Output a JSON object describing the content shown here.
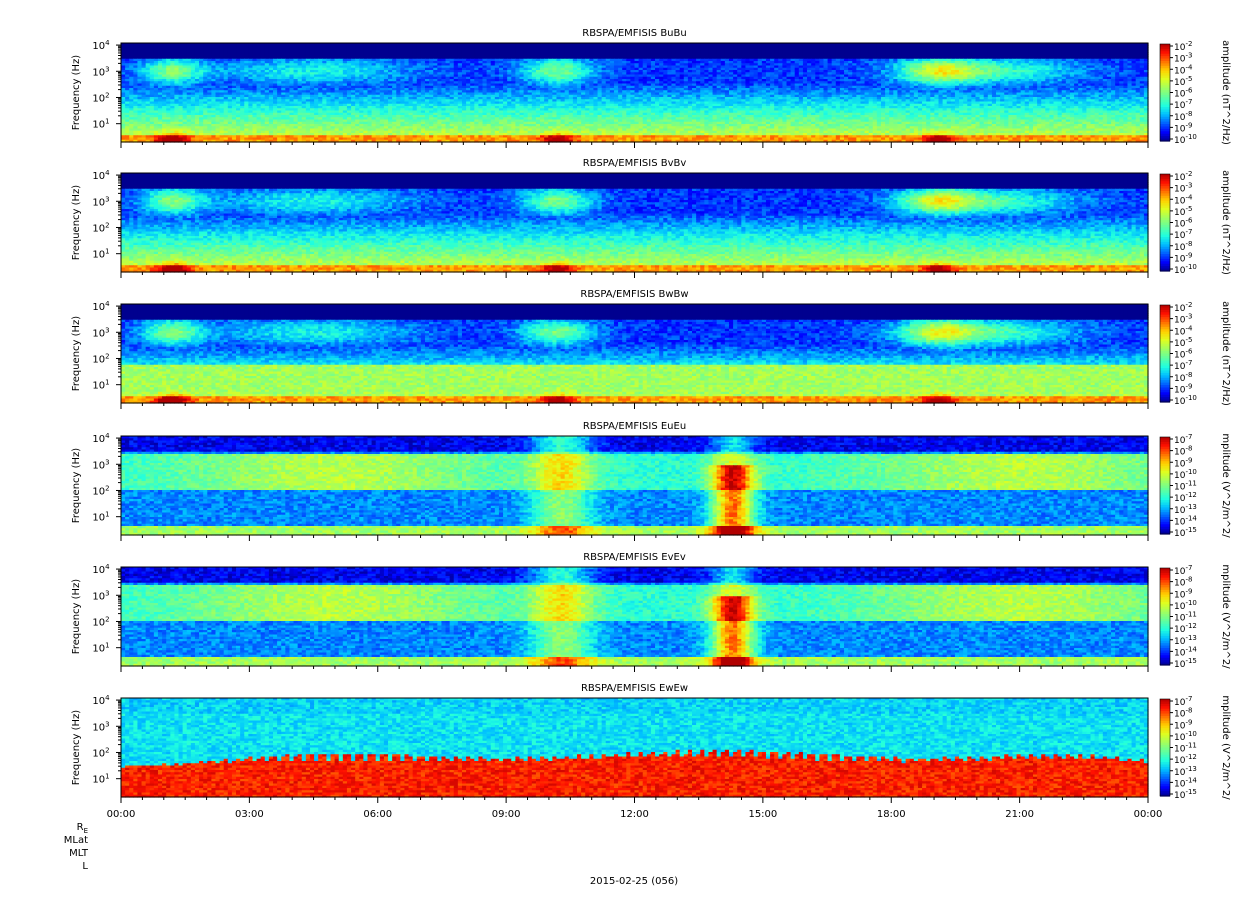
{
  "chart_data": {
    "type": "heatmap",
    "date_label": "2015-02-25 (056)",
    "x_ticks": [
      "00:00",
      "03:00",
      "06:00",
      "09:00",
      "12:00",
      "15:00",
      "18:00",
      "21:00",
      "00:00"
    ],
    "x_range_hours": [
      0,
      24
    ],
    "ephemeris_labels": [
      "R",
      "MLat",
      "MLT",
      "L"
    ],
    "ephemeris_re_subscript": "E",
    "panels": [
      {
        "title": "RBSPA/EMFISIS  BuBu",
        "ylabel": "Frequency (Hz)",
        "yscale": "log",
        "ylim_hz": [
          2,
          12000
        ],
        "y_tick_exponents": [
          1,
          2,
          3,
          4
        ],
        "colorbar_label": "amplitude (nT^2/Hz)",
        "colorbar_exponents": [
          -2,
          -3,
          -4,
          -5,
          -6,
          -7,
          -8,
          -9,
          -10
        ]
      },
      {
        "title": "RBSPA/EMFISIS  BvBv",
        "ylabel": "Frequency (Hz)",
        "yscale": "log",
        "ylim_hz": [
          2,
          12000
        ],
        "y_tick_exponents": [
          1,
          2,
          3,
          4
        ],
        "colorbar_label": "amplitude (nT^2/Hz)",
        "colorbar_exponents": [
          -2,
          -3,
          -4,
          -5,
          -6,
          -7,
          -8,
          -9,
          -10
        ]
      },
      {
        "title": "RBSPA/EMFISIS  BwBw",
        "ylabel": "Frequency (Hz)",
        "yscale": "log",
        "ylim_hz": [
          2,
          12000
        ],
        "y_tick_exponents": [
          1,
          2,
          3,
          4
        ],
        "colorbar_label": "amplitude (nT^2/Hz)",
        "colorbar_exponents": [
          -2,
          -3,
          -4,
          -5,
          -6,
          -7,
          -8,
          -9,
          -10
        ]
      },
      {
        "title": "RBSPA/EMFISIS  EuEu",
        "ylabel": "Frequency (Hz)",
        "yscale": "log",
        "ylim_hz": [
          2,
          12000
        ],
        "y_tick_exponents": [
          1,
          2,
          3,
          4
        ],
        "colorbar_label": "mplitude (V^2/m^2/",
        "colorbar_exponents": [
          -7,
          -8,
          -9,
          -10,
          -11,
          -12,
          -13,
          -14,
          -15
        ]
      },
      {
        "title": "RBSPA/EMFISIS  EvEv",
        "ylabel": "Frequency (Hz)",
        "yscale": "log",
        "ylim_hz": [
          2,
          12000
        ],
        "y_tick_exponents": [
          1,
          2,
          3,
          4
        ],
        "colorbar_label": "mplitude (V^2/m^2/",
        "colorbar_exponents": [
          -7,
          -8,
          -9,
          -10,
          -11,
          -12,
          -13,
          -14,
          -15
        ]
      },
      {
        "title": "RBSPA/EMFISIS  EwEw",
        "ylabel": "Frequency (Hz)",
        "yscale": "log",
        "ylim_hz": [
          2,
          12000
        ],
        "y_tick_exponents": [
          1,
          2,
          3,
          4
        ],
        "colorbar_label": "mplitude (V^2/m^2/",
        "colorbar_exponents": [
          -7,
          -8,
          -9,
          -10,
          -11,
          -12,
          -13,
          -14,
          -15
        ]
      }
    ],
    "colormap": [
      "#00008f",
      "#0000ff",
      "#0060ff",
      "#00c0ff",
      "#20ffdf",
      "#60ff9f",
      "#a0ff60",
      "#dfff20",
      "#ffd000",
      "#ff7000",
      "#ff1000",
      "#b00000"
    ]
  }
}
